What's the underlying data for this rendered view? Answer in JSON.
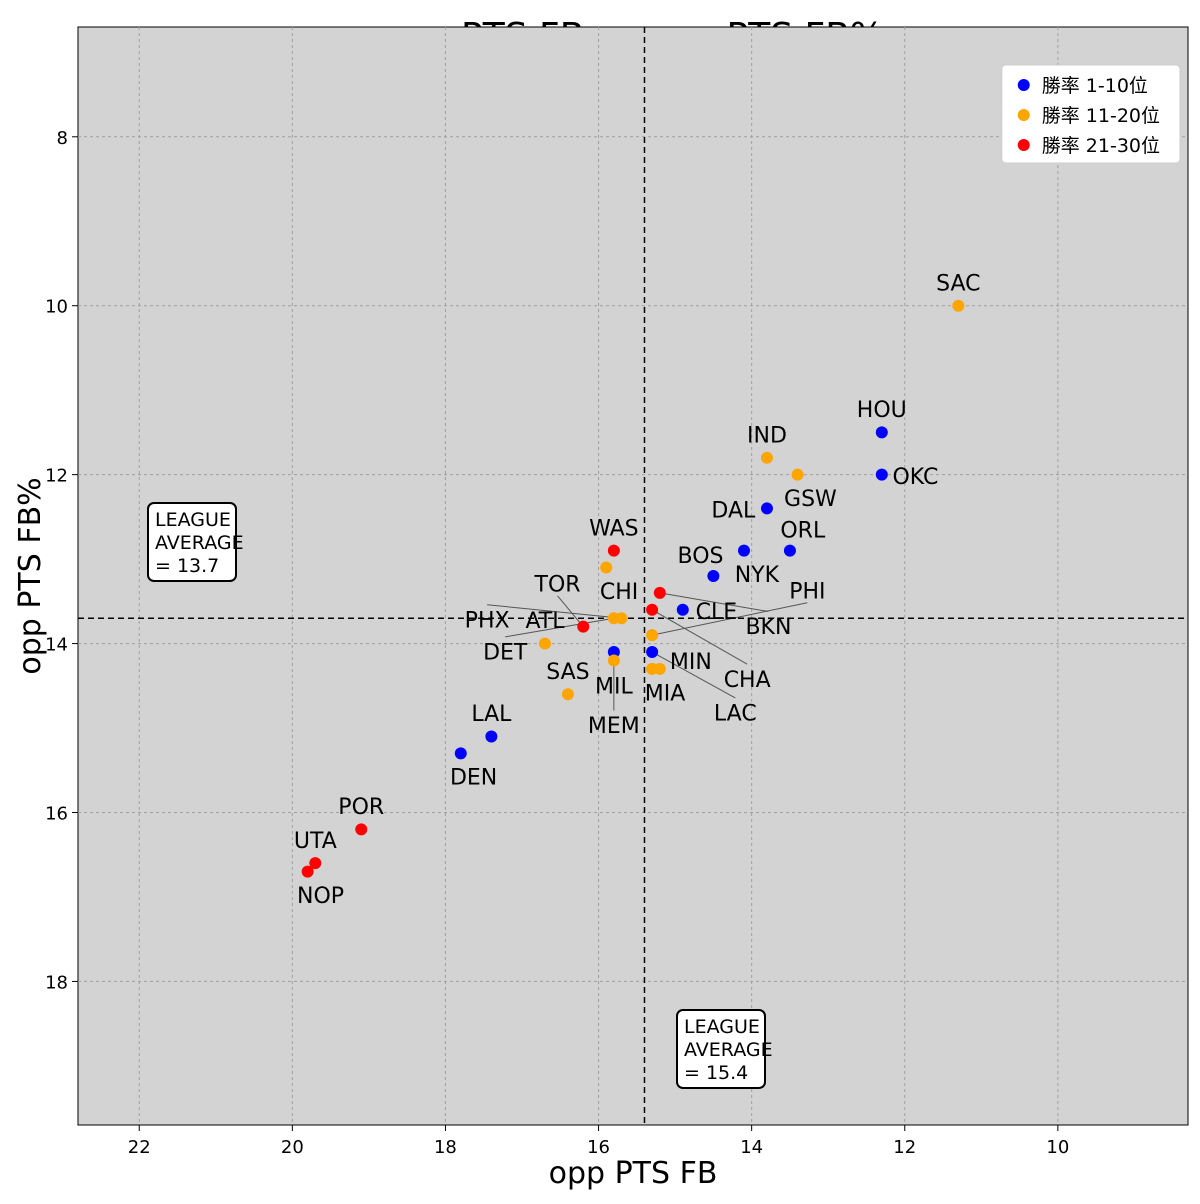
{
  "chart_data": {
    "type": "scatter",
    "title": "opp PTS FB vs opp PTS FB%",
    "xlabel": "opp PTS FB",
    "ylabel": "opp PTS FB%",
    "xlim": [
      22.8,
      8.3
    ],
    "ylim": [
      19.7,
      6.7
    ],
    "x_inverted": true,
    "y_inverted": true,
    "xticks": [
      22,
      20,
      18,
      16,
      14,
      12,
      10
    ],
    "yticks": [
      8,
      10,
      12,
      14,
      16,
      18
    ],
    "grid": true,
    "background": "#d3d3d3",
    "legend_position": "top-right",
    "series": [
      {
        "name": "勝率  1-10位",
        "color": "#0000ff",
        "points": [
          {
            "team": "HOU",
            "x": 12.3,
            "y": 11.5
          },
          {
            "team": "OKC",
            "x": 12.3,
            "y": 12.0
          },
          {
            "team": "DAL",
            "x": 13.8,
            "y": 12.4
          },
          {
            "team": "NYK",
            "x": 14.1,
            "y": 12.9
          },
          {
            "team": "ORL",
            "x": 13.5,
            "y": 12.9
          },
          {
            "team": "BOS",
            "x": 14.5,
            "y": 13.2
          },
          {
            "team": "CLE",
            "x": 14.9,
            "y": 13.6
          },
          {
            "team": "MEM",
            "x": 15.8,
            "y": 14.1
          },
          {
            "team": "LAC",
            "x": 15.3,
            "y": 14.1
          },
          {
            "team": "LAL",
            "x": 17.4,
            "y": 15.1
          },
          {
            "team": "DEN",
            "x": 17.8,
            "y": 15.3
          }
        ]
      },
      {
        "name": "勝率 11-20位",
        "color": "#ffa500",
        "points": [
          {
            "team": "SAC",
            "x": 11.3,
            "y": 10.0
          },
          {
            "team": "IND",
            "x": 13.8,
            "y": 11.8
          },
          {
            "team": "GSW",
            "x": 13.4,
            "y": 12.0
          },
          {
            "team": "CHI",
            "x": 15.9,
            "y": 13.1
          },
          {
            "team": "DET",
            "x": 15.8,
            "y": 13.7
          },
          {
            "team": "PHX",
            "x": 15.7,
            "y": 13.7
          },
          {
            "team": "PHI",
            "x": 15.3,
            "y": 13.9
          },
          {
            "team": "ATL",
            "x": 16.7,
            "y": 14.0
          },
          {
            "team": "MIL",
            "x": 15.8,
            "y": 14.2
          },
          {
            "team": "MIA",
            "x": 15.3,
            "y": 14.3
          },
          {
            "team": "MIN",
            "x": 15.2,
            "y": 14.3
          },
          {
            "team": "SAS",
            "x": 16.4,
            "y": 14.6
          }
        ]
      },
      {
        "name": "勝率 21-30位",
        "color": "#ff0000",
        "points": [
          {
            "team": "WAS",
            "x": 15.8,
            "y": 12.9
          },
          {
            "team": "BKN",
            "x": 15.2,
            "y": 13.4
          },
          {
            "team": "CHA",
            "x": 15.3,
            "y": 13.6
          },
          {
            "team": "TOR",
            "x": 16.2,
            "y": 13.8
          },
          {
            "team": "POR",
            "x": 19.1,
            "y": 16.2
          },
          {
            "team": "UTA",
            "x": 19.7,
            "y": 16.6
          },
          {
            "team": "NOP",
            "x": 19.8,
            "y": 16.7
          }
        ]
      }
    ],
    "reference_lines": {
      "x": 15.4,
      "y": 13.7
    },
    "annotations": {
      "y_avg": [
        "LEAGUE",
        "AVERAGE",
        "= 13.7"
      ],
      "x_avg": [
        "LEAGUE",
        "AVERAGE",
        "= 15.4"
      ]
    }
  }
}
